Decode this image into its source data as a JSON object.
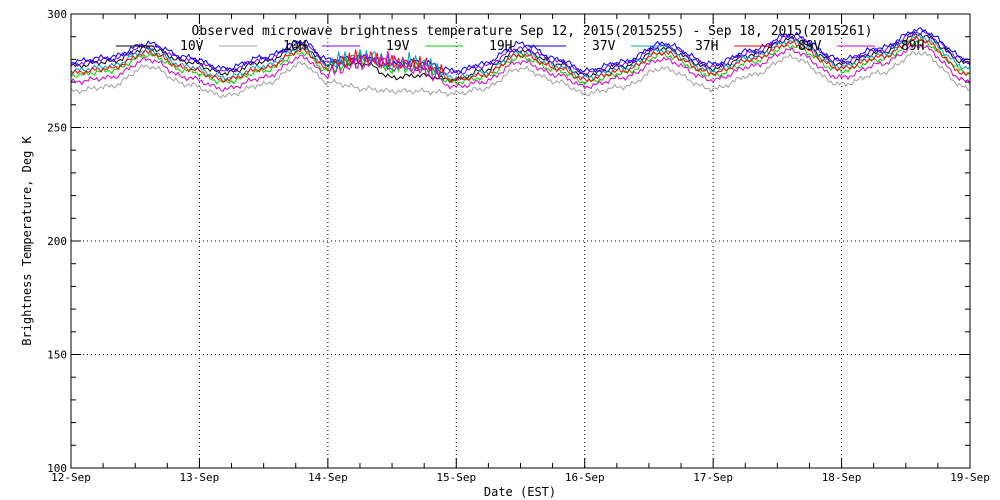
{
  "chart_data": {
    "type": "line",
    "title": "Observed microwave brightness temperature Sep 12, 2015(2015255) - Sep 18, 2015(2015261)",
    "xlabel": "Date (EST)",
    "ylabel": "Brightness Temperature, Deg K",
    "ylim": [
      100,
      300
    ],
    "yticks": [
      "100",
      "150",
      "200",
      "250",
      "300"
    ],
    "xlim": [
      0,
      7
    ],
    "xticks": [
      "12-Sep",
      "13-Sep",
      "14-Sep",
      "15-Sep",
      "16-Sep",
      "17-Sep",
      "18-Sep",
      "19-Sep"
    ],
    "grid": true,
    "legend_position": "top",
    "x_anchor_days": [
      0,
      0.3,
      0.6,
      0.9,
      1.2,
      1.5,
      1.8,
      2.0,
      2.3,
      2.5,
      2.7,
      3.0,
      3.2,
      3.5,
      3.8,
      4.0,
      4.3,
      4.6,
      5.0,
      5.3,
      5.6,
      6.0,
      6.3,
      6.6,
      7.0
    ],
    "series": [
      {
        "name": "10V",
        "color": "#000000",
        "values": [
          277,
          279,
          285,
          279,
          274,
          279,
          286,
          278,
          278,
          272,
          273,
          271,
          275,
          284,
          278,
          273,
          277,
          285,
          276,
          282,
          289,
          278,
          283,
          291,
          278
        ]
      },
      {
        "name": "10H",
        "color": "#a0a0a0",
        "values": [
          266,
          268,
          277,
          269,
          264,
          269,
          278,
          270,
          267,
          266,
          266,
          265,
          267,
          276,
          270,
          265,
          268,
          276,
          267,
          273,
          281,
          269,
          274,
          283,
          267
        ]
      },
      {
        "name": "19V",
        "color": "#8000ff",
        "values": [
          278,
          280,
          286,
          280,
          275,
          280,
          287,
          279,
          280,
          276,
          276,
          274,
          277,
          285,
          279,
          274,
          278,
          286,
          277,
          283,
          290,
          279,
          284,
          292,
          279
        ]
      },
      {
        "name": "19H",
        "color": "#00d000",
        "values": [
          273,
          275,
          282,
          275,
          270,
          275,
          283,
          275,
          278,
          275,
          275,
          270,
          272,
          281,
          275,
          270,
          274,
          282,
          273,
          279,
          286,
          275,
          280,
          288,
          274
        ]
      },
      {
        "name": "37V",
        "color": "#0000ff",
        "values": [
          279,
          281,
          287,
          281,
          276,
          281,
          288,
          280,
          281,
          278,
          279,
          275,
          278,
          287,
          280,
          275,
          279,
          287,
          278,
          284,
          291,
          280,
          285,
          293,
          280
        ]
      },
      {
        "name": "37H",
        "color": "#00a0c0",
        "values": [
          275,
          277,
          284,
          277,
          272,
          277,
          285,
          277,
          280,
          277,
          277,
          272,
          274,
          283,
          277,
          272,
          276,
          284,
          275,
          281,
          288,
          277,
          282,
          290,
          276
        ]
      },
      {
        "name": "89V",
        "color": "#ff0000",
        "values": [
          274,
          276,
          283,
          276,
          271,
          276,
          284,
          276,
          279,
          277,
          276,
          271,
          273,
          282,
          276,
          271,
          275,
          283,
          274,
          280,
          287,
          276,
          281,
          289,
          273
        ]
      },
      {
        "name": "89H",
        "color": "#d000d0",
        "values": [
          270,
          272,
          280,
          272,
          267,
          272,
          281,
          273,
          277,
          278,
          274,
          268,
          270,
          279,
          273,
          268,
          272,
          280,
          271,
          277,
          284,
          272,
          278,
          286,
          270
        ]
      }
    ]
  }
}
